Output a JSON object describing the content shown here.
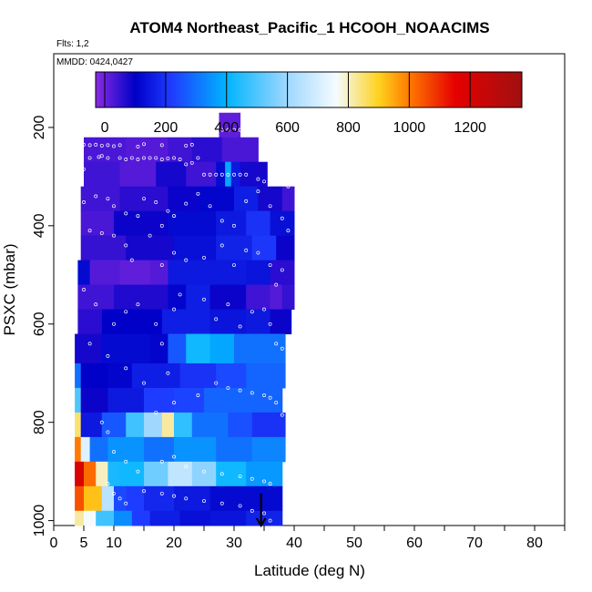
{
  "chart_data": {
    "type": "heatmap",
    "title": "ATOM4 Northeast_Pacific_1 HCOOH_NOAACIMS",
    "flights_label": "Flts: 1,2",
    "date_label": "MMDD: 0424,0427",
    "xlabel": "Latitude (deg N)",
    "ylabel": "PSXC (mbar)",
    "xlim": [
      0,
      85
    ],
    "ylim": [
      1010,
      50
    ],
    "x_ticks": [
      0,
      5,
      10,
      20,
      30,
      40,
      50,
      60,
      70,
      80
    ],
    "x_minor_ticks": [
      15,
      25,
      35,
      45,
      55,
      65,
      75,
      85
    ],
    "y_ticks": [
      200,
      400,
      600,
      800,
      1000
    ],
    "colorbar": {
      "vmin": -30,
      "vmax": 1370,
      "ticks": [
        0,
        200,
        400,
        600,
        800,
        1000,
        1200
      ],
      "stops": [
        {
          "v": -30,
          "c": "#8a2be2"
        },
        {
          "v": 100,
          "c": "#0000c8"
        },
        {
          "v": 220,
          "c": "#1e3cff"
        },
        {
          "v": 400,
          "c": "#00b4ff"
        },
        {
          "v": 600,
          "c": "#9fd8ff"
        },
        {
          "v": 760,
          "c": "#f4fbff"
        },
        {
          "v": 900,
          "c": "#ffd21e"
        },
        {
          "v": 1000,
          "c": "#ff7a00"
        },
        {
          "v": 1150,
          "c": "#e60000"
        },
        {
          "v": 1370,
          "c": "#a01010"
        }
      ]
    },
    "rows": [
      {
        "p_top": 170,
        "p_bot": 220,
        "cells": [
          [
            27.5,
            31,
            10
          ]
        ]
      },
      {
        "p_top": 220,
        "p_bot": 270,
        "cells": [
          [
            5,
            12,
            30
          ],
          [
            12,
            19,
            20
          ],
          [
            19,
            23,
            40
          ],
          [
            23,
            28,
            60
          ],
          [
            28,
            34,
            30
          ]
        ]
      },
      {
        "p_top": 270,
        "p_bot": 320,
        "cells": [
          [
            5,
            11,
            40
          ],
          [
            11,
            17,
            20
          ],
          [
            17,
            22,
            80
          ],
          [
            22,
            27,
            40
          ],
          [
            27,
            28.5,
            120
          ],
          [
            28.5,
            29.5,
            380
          ],
          [
            29.5,
            31,
            150
          ],
          [
            31,
            35.5,
            80
          ]
        ]
      },
      {
        "p_top": 320,
        "p_bot": 370,
        "cells": [
          [
            4.5,
            11,
            40
          ],
          [
            11,
            19,
            60
          ],
          [
            19,
            24,
            90
          ],
          [
            24,
            30,
            110
          ],
          [
            30,
            34,
            160
          ],
          [
            34,
            38,
            80
          ],
          [
            38,
            40,
            40
          ]
        ]
      },
      {
        "p_top": 370,
        "p_bot": 420,
        "cells": [
          [
            4.5,
            10,
            30
          ],
          [
            10,
            19,
            90
          ],
          [
            19,
            27,
            120
          ],
          [
            27,
            32,
            150
          ],
          [
            32,
            36,
            200
          ],
          [
            36,
            40,
            130
          ]
        ]
      },
      {
        "p_top": 420,
        "p_bot": 470,
        "cells": [
          [
            4.5,
            12,
            50
          ],
          [
            12,
            20,
            80
          ],
          [
            20,
            27,
            130
          ],
          [
            27,
            33,
            170
          ],
          [
            33,
            37,
            210
          ],
          [
            37,
            40,
            90
          ]
        ]
      },
      {
        "p_top": 470,
        "p_bot": 520,
        "cells": [
          [
            4,
            6,
            120
          ],
          [
            6,
            11,
            20
          ],
          [
            11,
            16,
            10
          ],
          [
            16,
            19,
            20
          ],
          [
            19,
            26,
            150
          ],
          [
            26,
            32,
            150
          ],
          [
            32,
            36,
            140
          ],
          [
            36,
            40,
            60
          ]
        ]
      },
      {
        "p_top": 520,
        "p_bot": 570,
        "cells": [
          [
            4,
            10,
            40
          ],
          [
            10,
            19,
            70
          ],
          [
            19,
            22,
            110
          ],
          [
            22,
            26,
            160
          ],
          [
            26,
            32,
            90
          ],
          [
            32,
            36,
            40
          ],
          [
            36,
            38,
            20
          ],
          [
            38,
            40,
            50
          ]
        ]
      },
      {
        "p_top": 570,
        "p_bot": 620,
        "cells": [
          [
            4,
            8,
            60
          ],
          [
            8,
            18,
            100
          ],
          [
            18,
            26,
            160
          ],
          [
            26,
            32,
            140
          ],
          [
            32,
            36,
            150
          ],
          [
            36,
            39.5,
            90
          ]
        ]
      },
      {
        "p_top": 620,
        "p_bot": 680,
        "cells": [
          [
            3.5,
            8,
            80
          ],
          [
            8,
            16,
            120
          ],
          [
            16,
            19,
            110
          ],
          [
            19,
            22,
            260
          ],
          [
            22,
            26,
            420
          ],
          [
            26,
            30,
            380
          ],
          [
            30,
            38.5,
            300
          ]
        ]
      },
      {
        "p_top": 680,
        "p_bot": 730,
        "cells": [
          [
            3.5,
            4.5,
            300
          ],
          [
            4.5,
            9,
            100
          ],
          [
            9,
            13,
            110
          ],
          [
            13,
            21,
            160
          ],
          [
            21,
            27,
            200
          ],
          [
            27,
            32,
            240
          ],
          [
            32,
            38.5,
            280
          ]
        ]
      },
      {
        "p_top": 730,
        "p_bot": 780,
        "cells": [
          [
            3.5,
            4.5,
            500
          ],
          [
            4.5,
            9,
            90
          ],
          [
            9,
            15,
            150
          ],
          [
            15,
            20,
            220
          ],
          [
            20,
            25,
            230
          ],
          [
            25,
            31,
            280
          ],
          [
            31,
            38,
            280
          ]
        ]
      },
      {
        "p_top": 780,
        "p_bot": 830,
        "cells": [
          [
            3.5,
            4.5,
            850
          ],
          [
            4.5,
            8,
            150
          ],
          [
            8,
            12,
            260
          ],
          [
            12,
            15,
            480
          ],
          [
            15,
            18,
            600
          ],
          [
            18,
            20,
            820
          ],
          [
            20,
            23,
            460
          ],
          [
            23,
            29,
            300
          ],
          [
            29,
            33,
            250
          ],
          [
            33,
            38.5,
            200
          ]
        ]
      },
      {
        "p_top": 830,
        "p_bot": 880,
        "cells": [
          [
            3.5,
            4.5,
            1000
          ],
          [
            4.5,
            6,
            720
          ],
          [
            6,
            9,
            300
          ],
          [
            9,
            12,
            350
          ],
          [
            12,
            15,
            350
          ],
          [
            15,
            20,
            300
          ],
          [
            20,
            27,
            350
          ],
          [
            27,
            33,
            300
          ],
          [
            33,
            38.5,
            330
          ]
        ]
      },
      {
        "p_top": 880,
        "p_bot": 930,
        "cells": [
          [
            3.5,
            5,
            1200
          ],
          [
            5,
            7,
            1020
          ],
          [
            7,
            9,
            800
          ],
          [
            9,
            11,
            430
          ],
          [
            11,
            15,
            420
          ],
          [
            15,
            19,
            540
          ],
          [
            19,
            23,
            660
          ],
          [
            23,
            27,
            580
          ],
          [
            27,
            32,
            420
          ],
          [
            32,
            38,
            360
          ]
        ]
      },
      {
        "p_top": 930,
        "p_bot": 980,
        "cells": [
          [
            3.5,
            5,
            1050
          ],
          [
            5,
            8,
            920
          ],
          [
            8,
            10,
            650
          ],
          [
            10,
            12,
            240
          ],
          [
            12,
            15,
            220
          ],
          [
            15,
            20,
            180
          ],
          [
            20,
            26,
            150
          ],
          [
            26,
            32,
            120
          ],
          [
            32,
            38,
            120
          ]
        ]
      },
      {
        "p_top": 980,
        "p_bot": 1010,
        "cells": [
          [
            3.5,
            5,
            820
          ],
          [
            5,
            7,
            760
          ],
          [
            7,
            10,
            480
          ],
          [
            10,
            13,
            340
          ],
          [
            13,
            16,
            220
          ],
          [
            16,
            21,
            160
          ],
          [
            21,
            26,
            130
          ],
          [
            26,
            32,
            140
          ],
          [
            32,
            38,
            170
          ]
        ]
      }
    ],
    "markers": [
      [
        5,
        235
      ],
      [
        6,
        236
      ],
      [
        7,
        235
      ],
      [
        8,
        237
      ],
      [
        9,
        236
      ],
      [
        10,
        238
      ],
      [
        11,
        236
      ],
      [
        14,
        239
      ],
      [
        15,
        234
      ],
      [
        18,
        236
      ],
      [
        22,
        237
      ],
      [
        23,
        235
      ],
      [
        27,
        205
      ],
      [
        28,
        205
      ],
      [
        29,
        205
      ],
      [
        30,
        205
      ],
      [
        31,
        205
      ],
      [
        5,
        285
      ],
      [
        6,
        262
      ],
      [
        7.5,
        260
      ],
      [
        8,
        258
      ],
      [
        9,
        262
      ],
      [
        11,
        262
      ],
      [
        12,
        265
      ],
      [
        13,
        262
      ],
      [
        14,
        265
      ],
      [
        15,
        262
      ],
      [
        16,
        262
      ],
      [
        17,
        262
      ],
      [
        18,
        265
      ],
      [
        19,
        263
      ],
      [
        20,
        262
      ],
      [
        21,
        265
      ],
      [
        22,
        275
      ],
      [
        23,
        272
      ],
      [
        24,
        262
      ],
      [
        25,
        296
      ],
      [
        26,
        296
      ],
      [
        27,
        296
      ],
      [
        28,
        296
      ],
      [
        29,
        296
      ],
      [
        30,
        296
      ],
      [
        31,
        296
      ],
      [
        32,
        296
      ],
      [
        34,
        305
      ],
      [
        35,
        310
      ],
      [
        36,
        315
      ],
      [
        37,
        315
      ],
      [
        38,
        310
      ],
      [
        39,
        320
      ],
      [
        5,
        352
      ],
      [
        7,
        340
      ],
      [
        9,
        345
      ],
      [
        10,
        360
      ],
      [
        12,
        375
      ],
      [
        14,
        380
      ],
      [
        15,
        345
      ],
      [
        17,
        352
      ],
      [
        18,
        400
      ],
      [
        19,
        370
      ],
      [
        20,
        380
      ],
      [
        22,
        355
      ],
      [
        24,
        335
      ],
      [
        26,
        360
      ],
      [
        28,
        390
      ],
      [
        30,
        400
      ],
      [
        32,
        350
      ],
      [
        34,
        330
      ],
      [
        36,
        360
      ],
      [
        38,
        385
      ],
      [
        39,
        410
      ],
      [
        6,
        410
      ],
      [
        8,
        415
      ],
      [
        10,
        420
      ],
      [
        12,
        440
      ],
      [
        13,
        470
      ],
      [
        16,
        420
      ],
      [
        18,
        480
      ],
      [
        20,
        455
      ],
      [
        22,
        470
      ],
      [
        25,
        465
      ],
      [
        28,
        440
      ],
      [
        30,
        480
      ],
      [
        32,
        450
      ],
      [
        34,
        455
      ],
      [
        36,
        480
      ],
      [
        37,
        520
      ],
      [
        38,
        490
      ],
      [
        5,
        530
      ],
      [
        7,
        560
      ],
      [
        10,
        600
      ],
      [
        12,
        575
      ],
      [
        14,
        560
      ],
      [
        17,
        600
      ],
      [
        18,
        640
      ],
      [
        20,
        570
      ],
      [
        21,
        540
      ],
      [
        25,
        550
      ],
      [
        27,
        590
      ],
      [
        29,
        560
      ],
      [
        31,
        605
      ],
      [
        33,
        575
      ],
      [
        35,
        570
      ],
      [
        36,
        600
      ],
      [
        37,
        640
      ],
      [
        38,
        650
      ],
      [
        6,
        640
      ],
      [
        9,
        665
      ],
      [
        12,
        690
      ],
      [
        15,
        720
      ],
      [
        17,
        780
      ],
      [
        19,
        700
      ],
      [
        20,
        760
      ],
      [
        24,
        745
      ],
      [
        27,
        720
      ],
      [
        29,
        730
      ],
      [
        31,
        735
      ],
      [
        33,
        740
      ],
      [
        35,
        745
      ],
      [
        36,
        750
      ],
      [
        37,
        760
      ],
      [
        38,
        785
      ],
      [
        8,
        800
      ],
      [
        9,
        820
      ],
      [
        10,
        860
      ],
      [
        12,
        880
      ],
      [
        14,
        900
      ],
      [
        18,
        880
      ],
      [
        20,
        870
      ],
      [
        22,
        890
      ],
      [
        25,
        900
      ],
      [
        28,
        905
      ],
      [
        31,
        910
      ],
      [
        33,
        915
      ],
      [
        35,
        920
      ],
      [
        36,
        925
      ],
      [
        9,
        925
      ],
      [
        10,
        945
      ],
      [
        11,
        955
      ],
      [
        12,
        965
      ],
      [
        15,
        940
      ],
      [
        18,
        945
      ],
      [
        20,
        950
      ],
      [
        22,
        955
      ],
      [
        25,
        960
      ],
      [
        28,
        965
      ],
      [
        31,
        970
      ],
      [
        33,
        980
      ],
      [
        35,
        985
      ],
      [
        36,
        1000
      ]
    ],
    "arrow": {
      "x": 34.5,
      "p_from": 945,
      "p_to": 1010
    }
  }
}
